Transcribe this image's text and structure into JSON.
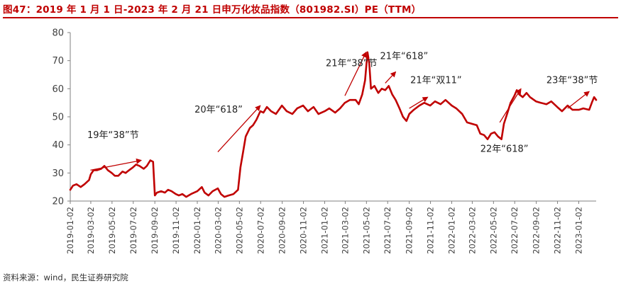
{
  "title": "图47：2019 年 1 月 1 日-2023 年 2 月 21 日申万化妆品指数（801982.SI）PE（TTM）",
  "source": "资料来源：wind，民生证券研究院",
  "colors": {
    "series": "#c00000",
    "accent": "#c00000",
    "axis": "#808080",
    "text": "#404040"
  },
  "chart_data": {
    "type": "line",
    "title": "图47：2019 年 1 月 1 日-2023 年 2 月 21 日申万化妆品指数（801982.SI）PE（TTM）",
    "xlabel": "",
    "ylabel": "",
    "x_range": [
      "2019-01-02",
      "2023-02-21"
    ],
    "ylim": [
      20,
      80
    ],
    "yticks": [
      20,
      30,
      40,
      50,
      60,
      70,
      80
    ],
    "xticks": [
      "2019-01-02",
      "2019-03-02",
      "2019-05-02",
      "2019-07-02",
      "2019-09-02",
      "2019-11-02",
      "2020-01-02",
      "2020-03-02",
      "2020-05-02",
      "2020-07-02",
      "2020-09-02",
      "2020-11-02",
      "2021-01-02",
      "2021-03-02",
      "2021-05-02",
      "2021-07-02",
      "2021-09-02",
      "2021-11-02",
      "2022-01-02",
      "2022-03-02",
      "2022-05-02",
      "2022-07-02",
      "2022-09-02",
      "2022-11-02",
      "2023-01-02"
    ],
    "grid": false,
    "legend": "none",
    "series": [
      {
        "values": [
          [
            "2019-01-02",
            24
          ],
          [
            "2019-01-10",
            25.5
          ],
          [
            "2019-01-20",
            26
          ],
          [
            "2019-02-01",
            25
          ],
          [
            "2019-02-12",
            26
          ],
          [
            "2019-02-25",
            27.5
          ],
          [
            "2019-03-02",
            29.5
          ],
          [
            "2019-03-10",
            31
          ],
          [
            "2019-03-20",
            31
          ],
          [
            "2019-04-01",
            31.5
          ],
          [
            "2019-04-10",
            32.5
          ],
          [
            "2019-04-20",
            31
          ],
          [
            "2019-05-01",
            30
          ],
          [
            "2019-05-10",
            29
          ],
          [
            "2019-05-20",
            29
          ],
          [
            "2019-06-01",
            30.5
          ],
          [
            "2019-06-10",
            30
          ],
          [
            "2019-06-20",
            31
          ],
          [
            "2019-07-01",
            32
          ],
          [
            "2019-07-10",
            33
          ],
          [
            "2019-07-20",
            32.5
          ],
          [
            "2019-08-01",
            31.5
          ],
          [
            "2019-08-10",
            32.5
          ],
          [
            "2019-08-20",
            34.5
          ],
          [
            "2019-08-28",
            34
          ],
          [
            "2019-09-02",
            22
          ],
          [
            "2019-09-08",
            23
          ],
          [
            "2019-09-20",
            23.5
          ],
          [
            "2019-10-01",
            23
          ],
          [
            "2019-10-10",
            24
          ],
          [
            "2019-10-20",
            23.5
          ],
          [
            "2019-11-01",
            22.5
          ],
          [
            "2019-11-10",
            22
          ],
          [
            "2019-11-20",
            22.5
          ],
          [
            "2019-12-01",
            21.5
          ],
          [
            "2019-12-15",
            22.5
          ],
          [
            "2020-01-02",
            23.5
          ],
          [
            "2020-01-15",
            25
          ],
          [
            "2020-01-23",
            23
          ],
          [
            "2020-02-03",
            22
          ],
          [
            "2020-02-15",
            23.5
          ],
          [
            "2020-03-01",
            24.5
          ],
          [
            "2020-03-10",
            22.5
          ],
          [
            "2020-03-20",
            21.5
          ],
          [
            "2020-04-01",
            22
          ],
          [
            "2020-04-15",
            22.5
          ],
          [
            "2020-04-28",
            24
          ],
          [
            "2020-05-05",
            32
          ],
          [
            "2020-05-12",
            37
          ],
          [
            "2020-05-20",
            43
          ],
          [
            "2020-06-01",
            46
          ],
          [
            "2020-06-10",
            47
          ],
          [
            "2020-06-20",
            49
          ],
          [
            "2020-07-01",
            52
          ],
          [
            "2020-07-10",
            51.5
          ],
          [
            "2020-07-20",
            53.5
          ],
          [
            "2020-08-01",
            52
          ],
          [
            "2020-08-15",
            51
          ],
          [
            "2020-09-01",
            54
          ],
          [
            "2020-09-15",
            52
          ],
          [
            "2020-10-01",
            51
          ],
          [
            "2020-10-15",
            53
          ],
          [
            "2020-11-01",
            54
          ],
          [
            "2020-11-15",
            52
          ],
          [
            "2020-12-01",
            53.5
          ],
          [
            "2020-12-15",
            51
          ],
          [
            "2021-01-02",
            52
          ],
          [
            "2021-01-15",
            53
          ],
          [
            "2021-02-01",
            51.5
          ],
          [
            "2021-02-15",
            53
          ],
          [
            "2021-03-01",
            55
          ],
          [
            "2021-03-15",
            56
          ],
          [
            "2021-04-01",
            56
          ],
          [
            "2021-04-10",
            54.5
          ],
          [
            "2021-04-20",
            58
          ],
          [
            "2021-04-28",
            63
          ],
          [
            "2021-05-05",
            73
          ],
          [
            "2021-05-10",
            69
          ],
          [
            "2021-05-15",
            60
          ],
          [
            "2021-05-25",
            61
          ],
          [
            "2021-06-05",
            58.5
          ],
          [
            "2021-06-15",
            60
          ],
          [
            "2021-06-25",
            59.5
          ],
          [
            "2021-07-05",
            61
          ],
          [
            "2021-07-15",
            58
          ],
          [
            "2021-07-25",
            56
          ],
          [
            "2021-08-05",
            53
          ],
          [
            "2021-08-15",
            50
          ],
          [
            "2021-08-25",
            48.5
          ],
          [
            "2021-09-02",
            51
          ],
          [
            "2021-09-15",
            52.5
          ],
          [
            "2021-10-01",
            54
          ],
          [
            "2021-10-15",
            55
          ],
          [
            "2021-11-01",
            54
          ],
          [
            "2021-11-15",
            55.5
          ],
          [
            "2021-12-01",
            54.5
          ],
          [
            "2021-12-15",
            56
          ],
          [
            "2022-01-02",
            54
          ],
          [
            "2022-01-15",
            53
          ],
          [
            "2022-02-01",
            51
          ],
          [
            "2022-02-15",
            48
          ],
          [
            "2022-03-01",
            47.5
          ],
          [
            "2022-03-15",
            47
          ],
          [
            "2022-03-25",
            44
          ],
          [
            "2022-04-05",
            43.5
          ],
          [
            "2022-04-15",
            42
          ],
          [
            "2022-04-25",
            44
          ],
          [
            "2022-05-05",
            44.5
          ],
          [
            "2022-05-15",
            43
          ],
          [
            "2022-05-25",
            42
          ],
          [
            "2022-06-01",
            47.5
          ],
          [
            "2022-06-10",
            51
          ],
          [
            "2022-06-20",
            55
          ],
          [
            "2022-07-01",
            57.5
          ],
          [
            "2022-07-08",
            59.5
          ],
          [
            "2022-07-15",
            58
          ],
          [
            "2022-07-25",
            57
          ],
          [
            "2022-08-05",
            58.5
          ],
          [
            "2022-08-15",
            57
          ],
          [
            "2022-09-01",
            55.5
          ],
          [
            "2022-09-15",
            55
          ],
          [
            "2022-10-01",
            54.5
          ],
          [
            "2022-10-15",
            55.5
          ],
          [
            "2022-11-01",
            53.5
          ],
          [
            "2022-11-15",
            52
          ],
          [
            "2022-12-01",
            54
          ],
          [
            "2022-12-15",
            52.5
          ],
          [
            "2023-01-02",
            52.5
          ],
          [
            "2023-01-15",
            53
          ],
          [
            "2023-02-01",
            52.5
          ],
          [
            "2023-02-10",
            55.5
          ],
          [
            "2023-02-15",
            57
          ],
          [
            "2023-02-21",
            56
          ]
        ]
      }
    ],
    "annotations": [
      {
        "label": "19年“38”节",
        "x": "2019-02-20",
        "y": 42.5
      },
      {
        "label": "20年“618”",
        "x": "2019-12-25",
        "y": 51.5
      },
      {
        "label": "21年“38”节",
        "x": "2021-01-05",
        "y": 68
      },
      {
        "label": "21年“618”",
        "x": "2021-06-10",
        "y": 70.5
      },
      {
        "label": "21年“双11”",
        "x": "2021-09-05",
        "y": 62
      },
      {
        "label": "22年“618”",
        "x": "2022-03-25",
        "y": 37.5
      },
      {
        "label": "23年“38”节",
        "x": "2022-10-01",
        "y": 62
      }
    ],
    "arrows": [
      {
        "from": [
          "2019-03-01",
          31
        ],
        "to": [
          "2019-07-25",
          34.5
        ]
      },
      {
        "from": [
          "2020-03-01",
          37.5
        ],
        "to": [
          "2020-07-01",
          54
        ]
      },
      {
        "from": [
          "2021-03-01",
          57.5
        ],
        "to": [
          "2021-05-01",
          73
        ]
      },
      {
        "from": [
          "2021-06-25",
          62
        ],
        "to": [
          "2021-07-25",
          66
        ]
      },
      {
        "from": [
          "2021-09-02",
          53
        ],
        "to": [
          "2021-10-25",
          57
        ]
      },
      {
        "from": [
          "2022-05-20",
          48
        ],
        "to": [
          "2022-07-20",
          60
        ]
      },
      {
        "from": [
          "2022-12-01",
          53
        ],
        "to": [
          "2023-02-01",
          59
        ]
      }
    ]
  }
}
